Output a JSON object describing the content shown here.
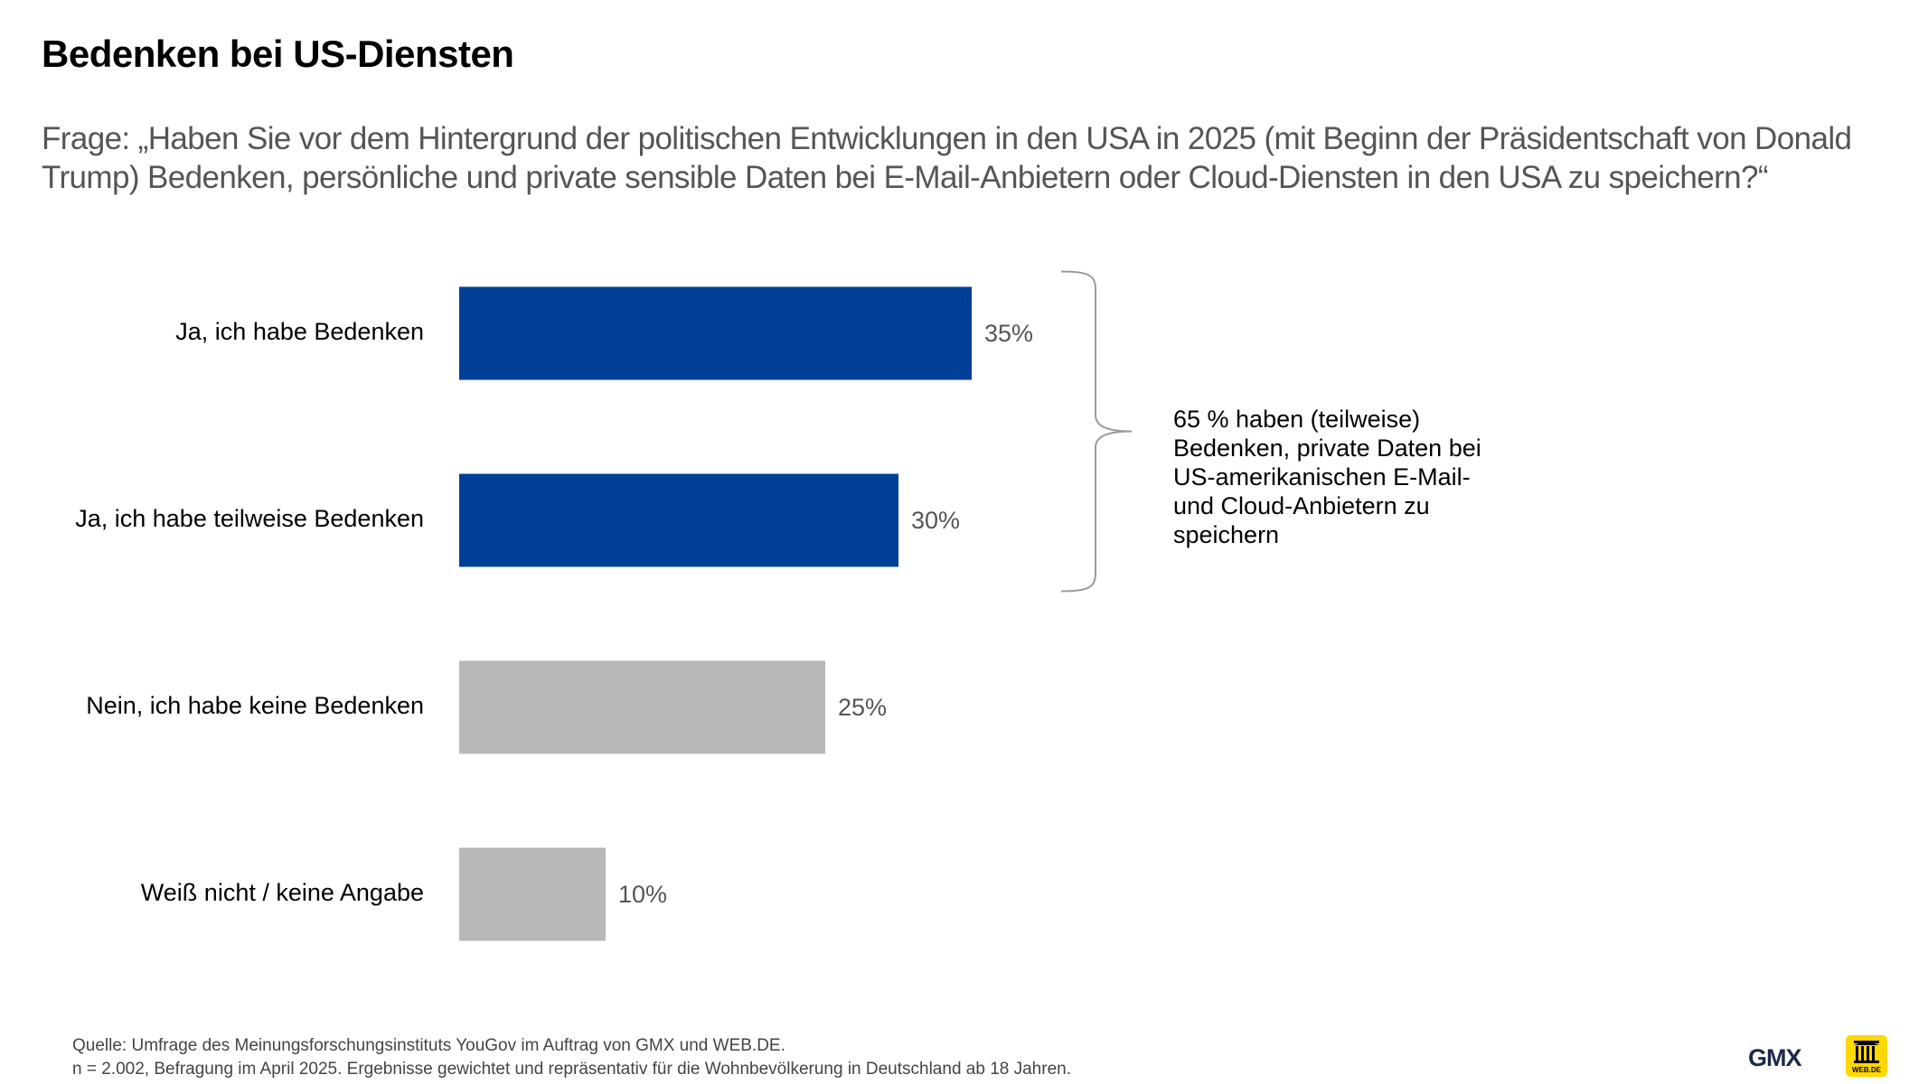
{
  "title": "Bedenken bei US-Diensten",
  "subtitle": "Frage: „Haben Sie vor dem Hintergrund der politischen Entwicklungen in den USA in 2025 (mit Beginn der Präsidentschaft von Donald Trump) Bedenken, persönliche und private sensible Daten bei E-Mail-Anbietern oder Cloud-Diensten in den USA zu speichern?“",
  "chart_data": {
    "type": "bar",
    "orientation": "horizontal",
    "categories": [
      "Ja, ich habe Bedenken",
      "Ja, ich habe teilweise Bedenken",
      "Nein, ich habe keine Bedenken",
      "Weiß nicht / keine Angabe"
    ],
    "values": [
      35,
      30,
      25,
      10
    ],
    "value_labels": [
      "35%",
      "30%",
      "25%",
      "10%"
    ],
    "unit": "%",
    "bar_colors": [
      "#003f95",
      "#003f95",
      "#b8b8b8",
      "#b8b8b8"
    ],
    "grid": false,
    "legend": "none",
    "annotation": {
      "text": "65 % haben (teilweise) Bedenken, private Daten bei US-amerikanischen E-Mail- und Cloud-Anbietern zu speichern",
      "brackets_categories": [
        0,
        1
      ]
    }
  },
  "footer": {
    "source": "Quelle: Umfrage des Meinungsforschungsinstituts YouGov im Auftrag von GMX und WEB.DE.",
    "note": "n = 2.002, Befragung im April 2025. Ergebnisse gewichtet und repräsentativ für die Wohnbevölkerung in Deutschland ab 18 Jahren."
  },
  "logos": {
    "gmx": "GMX",
    "webde": "WEB.DE"
  },
  "colors": {
    "accent_blue": "#003f95",
    "neutral_gray": "#b8b8b8",
    "logo_yellow": "#ffd800"
  }
}
